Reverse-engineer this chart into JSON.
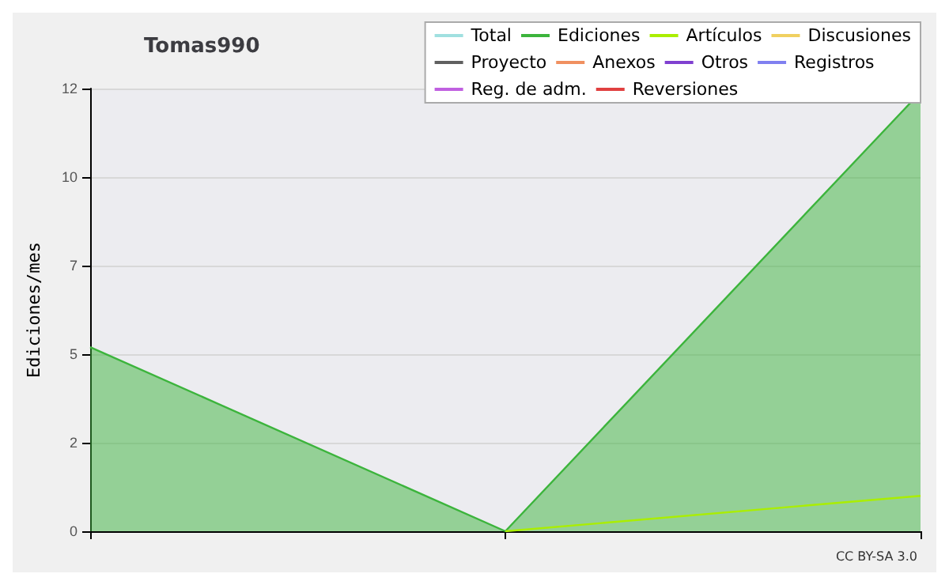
{
  "chart_data": {
    "type": "line",
    "title": "Tomas990",
    "ylabel": "Ediciones/mes",
    "categories": [
      null,
      null,
      null
    ],
    "series": [
      {
        "name": "Total",
        "color": "#a0e0e0",
        "values": [
          null,
          null,
          null
        ]
      },
      {
        "name": "Ediciones",
        "type": "area",
        "color": "#3cb43c",
        "values": [
          5.2,
          0,
          12.4
        ]
      },
      {
        "name": "Artículos",
        "color": "#aaee00",
        "values": [
          null,
          0,
          1.0
        ]
      },
      {
        "name": "Discusiones",
        "color": "#f0d060",
        "values": [
          null,
          null,
          null
        ]
      },
      {
        "name": "Proyecto",
        "color": "#606060",
        "values": [
          null,
          null,
          null
        ]
      },
      {
        "name": "Anexos",
        "color": "#f09060",
        "values": [
          null,
          null,
          null
        ]
      },
      {
        "name": "Otros",
        "color": "#8040d0",
        "values": [
          null,
          null,
          null
        ]
      },
      {
        "name": "Registros",
        "color": "#8080f0",
        "values": [
          null,
          null,
          null
        ]
      },
      {
        "name": "Reg. de adm.",
        "color": "#c060e0",
        "values": [
          null,
          null,
          null
        ]
      },
      {
        "name": "Reversiones",
        "color": "#e04040",
        "values": [
          null,
          null,
          null
        ]
      }
    ],
    "ylim": [
      0,
      12.5
    ],
    "yticks": [
      0,
      {
        "value": 2.5,
        "label": "2"
      },
      5,
      {
        "value": 7.5,
        "label": "7"
      },
      10,
      {
        "value": 12.5,
        "label": "12"
      }
    ],
    "grid": "y",
    "legend": "top right",
    "marker": "none",
    "annotations": [
      "CC BY-SA 3.0"
    ]
  }
}
